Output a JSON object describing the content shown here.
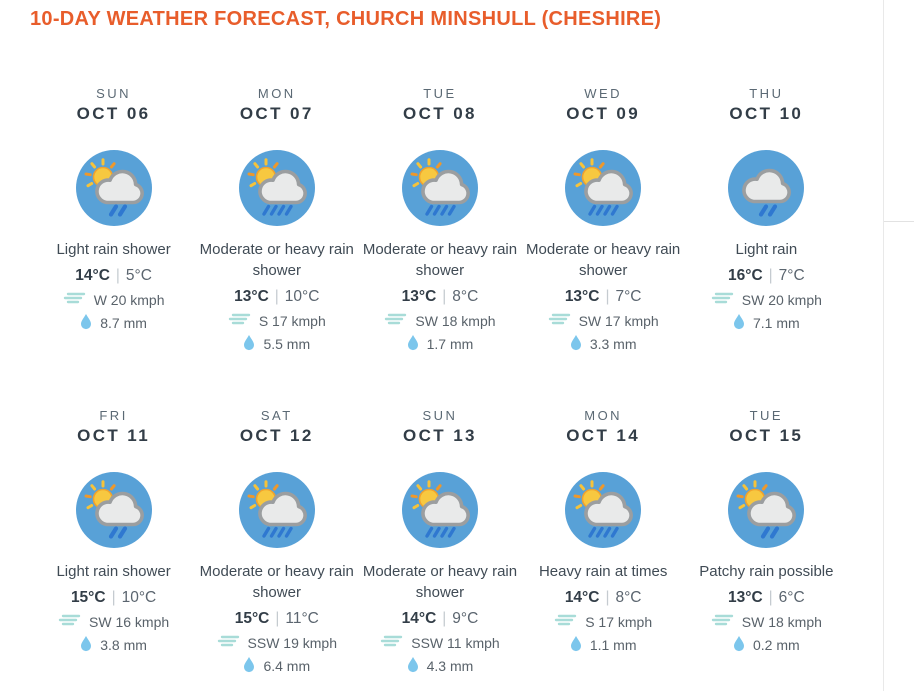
{
  "title": "10-DAY WEATHER FORECAST, CHURCH MINSHULL (CHESHIRE)",
  "temp_separator": "|",
  "colors": {
    "accent": "#e85d2b",
    "icon_circle": "#58a1d7",
    "rain": "#2f78d0",
    "sun_core": "#f7c840",
    "sun_edge": "#f0a22e",
    "ray_orange": "#ee982b",
    "ray_yellow": "#f6c33a",
    "cloud_fill": "#e9eaea",
    "cloud_stroke": "#9b9ea0",
    "wind": "#a8dcd8",
    "raindrop": "#7cc6ec"
  },
  "days": [
    {
      "day": "SUN",
      "date": "OCT 06",
      "icon": "sun-cloud-light-rain",
      "desc": "Light rain shower",
      "high": "14°C",
      "low": "5°C",
      "wind": "W 20 kmph",
      "precip": "8.7 mm"
    },
    {
      "day": "MON",
      "date": "OCT 07",
      "icon": "sun-cloud-heavy-rain",
      "desc": "Moderate or heavy rain shower",
      "high": "13°C",
      "low": "10°C",
      "wind": "S 17 kmph",
      "precip": "5.5 mm"
    },
    {
      "day": "TUE",
      "date": "OCT 08",
      "icon": "sun-cloud-heavy-rain",
      "desc": "Moderate or heavy rain shower",
      "high": "13°C",
      "low": "8°C",
      "wind": "SW 18 kmph",
      "precip": "1.7 mm"
    },
    {
      "day": "WED",
      "date": "OCT 09",
      "icon": "sun-cloud-heavy-rain",
      "desc": "Moderate or heavy rain shower",
      "high": "13°C",
      "low": "7°C",
      "wind": "SW 17 kmph",
      "precip": "3.3 mm"
    },
    {
      "day": "THU",
      "date": "OCT 10",
      "icon": "cloud-light-rain",
      "desc": "Light rain",
      "high": "16°C",
      "low": "7°C",
      "wind": "SW 20 kmph",
      "precip": "7.1 mm"
    },
    {
      "day": "FRI",
      "date": "OCT 11",
      "icon": "sun-cloud-light-rain",
      "desc": "Light rain shower",
      "high": "15°C",
      "low": "10°C",
      "wind": "SW 16 kmph",
      "precip": "3.8 mm"
    },
    {
      "day": "SAT",
      "date": "OCT 12",
      "icon": "sun-cloud-heavy-rain",
      "desc": "Moderate or heavy rain shower",
      "high": "15°C",
      "low": "11°C",
      "wind": "SSW 19 kmph",
      "precip": "6.4 mm"
    },
    {
      "day": "SUN",
      "date": "OCT 13",
      "icon": "sun-cloud-heavy-rain",
      "desc": "Moderate or heavy rain shower",
      "high": "14°C",
      "low": "9°C",
      "wind": "SSW 11 kmph",
      "precip": "4.3 mm"
    },
    {
      "day": "MON",
      "date": "OCT 14",
      "icon": "sun-cloud-heavy-rain",
      "desc": "Heavy rain at times",
      "high": "14°C",
      "low": "8°C",
      "wind": "S 17 kmph",
      "precip": "1.1 mm"
    },
    {
      "day": "TUE",
      "date": "OCT 15",
      "icon": "sun-cloud-light-rain",
      "desc": "Patchy rain possible",
      "high": "13°C",
      "low": "6°C",
      "wind": "SW 18 kmph",
      "precip": "0.2 mm"
    }
  ]
}
